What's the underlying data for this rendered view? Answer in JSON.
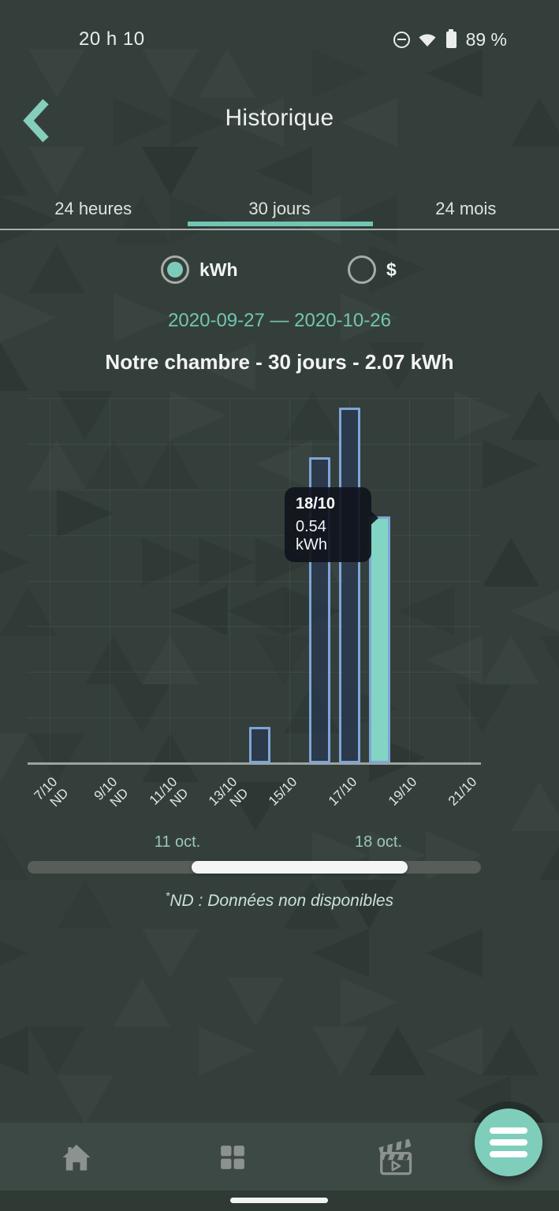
{
  "status_bar": {
    "time": "20 h 10",
    "battery_percent": "89 %"
  },
  "header": {
    "title": "Historique"
  },
  "tabs": {
    "items": [
      {
        "label": "24 heures",
        "active": false
      },
      {
        "label": "30 jours",
        "active": true
      },
      {
        "label": "24 mois",
        "active": false
      }
    ]
  },
  "unit_toggle": {
    "options": [
      {
        "label": "kWh",
        "selected": true
      },
      {
        "label": "$",
        "selected": false
      }
    ]
  },
  "date_range": "2020-09-27 — 2020-10-26",
  "chart_data": {
    "type": "bar",
    "title": "Notre chambre - 30 jours - 2.07 kWh",
    "device": "Notre chambre",
    "period": "30 jours",
    "total": "2.07 kWh",
    "unit": "kWh",
    "ylim": [
      0,
      0.8
    ],
    "grid": true,
    "x_range": [
      "7/10",
      "21/10"
    ],
    "x_tick_labels": [
      {
        "label": "7/10",
        "sub": "ND"
      },
      {
        "label": "9/10",
        "sub": "ND"
      },
      {
        "label": "11/10",
        "sub": "ND"
      },
      {
        "label": "13/10",
        "sub": "ND"
      },
      {
        "label": "15/10",
        "sub": ""
      },
      {
        "label": "17/10",
        "sub": ""
      },
      {
        "label": "19/10",
        "sub": ""
      },
      {
        "label": "21/10",
        "sub": ""
      }
    ],
    "bars": [
      {
        "x": "14/10",
        "value": 0.08,
        "selected": false
      },
      {
        "x": "16/10",
        "value": 0.67,
        "selected": false
      },
      {
        "x": "17/10",
        "value": 0.78,
        "selected": false
      },
      {
        "x": "18/10",
        "value": 0.54,
        "selected": true
      }
    ],
    "tooltip": {
      "title": "18/10",
      "value": "0.54 kWh",
      "target": "18/10"
    }
  },
  "range_slider": {
    "left_label": "11 oct.",
    "right_label": "18 oct."
  },
  "footnote": {
    "marker": "*",
    "text": "ND : Données non disponibles"
  },
  "colors": {
    "accent": "#70C6B1",
    "fab": "#7FCEBC",
    "bar_outline": "#7FA5D6",
    "bar_fill": "rgba(40,56,80,0.75)",
    "selected_bar_fill": "#82D4C3",
    "date_text": "#72C6B1",
    "tooltip_bg": "rgba(16,20,28,0.92)"
  }
}
